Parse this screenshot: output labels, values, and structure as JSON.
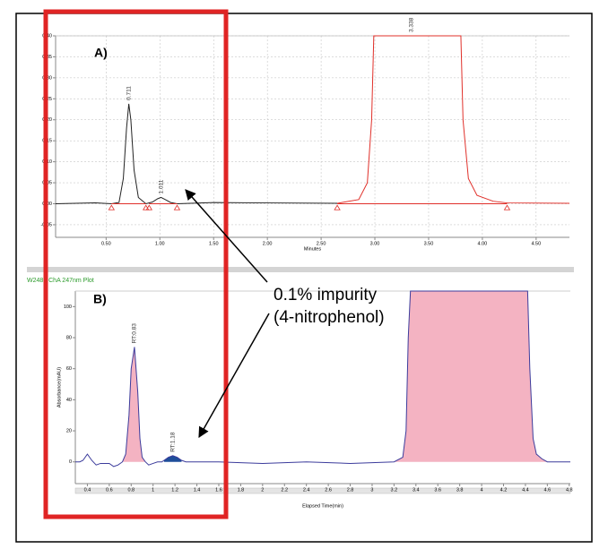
{
  "chart_data": [
    {
      "type": "line",
      "panel_label": "A)",
      "x_label": "Minutes",
      "xlim": [
        0.03,
        4.81
      ],
      "ylim": [
        -0.08,
        0.4
      ],
      "xticks": [
        {
          "value": 0.5,
          "label": "0.50"
        },
        {
          "value": 1,
          "label": "1.00"
        },
        {
          "value": 1.5,
          "label": "1.50"
        },
        {
          "value": 2,
          "label": "2.00"
        },
        {
          "value": 2.5,
          "label": "2.50"
        },
        {
          "value": 3,
          "label": "3.00"
        },
        {
          "value": 3.5,
          "label": "3.50"
        },
        {
          "value": 4,
          "label": "4.00"
        },
        {
          "value": 4.5,
          "label": "4.50"
        }
      ],
      "yticks": [
        {
          "value": -0.05,
          "label": "-0.05"
        },
        {
          "value": 0,
          "label": "0.00"
        },
        {
          "value": 0.05,
          "label": "0.05"
        },
        {
          "value": 0.1,
          "label": "0.10"
        },
        {
          "value": 0.15,
          "label": "0.15"
        },
        {
          "value": 0.2,
          "label": "0.20"
        },
        {
          "value": 0.25,
          "label": "0.25"
        },
        {
          "value": 0.3,
          "label": "0.30"
        },
        {
          "value": 0.35,
          "label": "0.35"
        },
        {
          "value": 0.4,
          "label": "0.40"
        }
      ],
      "series": [
        {
          "color": "#222222",
          "x": [
            0.03,
            0.4,
            0.55,
            0.62,
            0.66,
            0.69,
            0.711,
            0.73,
            0.76,
            0.8,
            0.87,
            0.93,
            0.98,
            1.011,
            1.05,
            1.1,
            1.16,
            1.5,
            2.0,
            2.65
          ],
          "values": [
            0,
            0.002,
            0,
            0.003,
            0.06,
            0.18,
            0.238,
            0.2,
            0.08,
            0.015,
            0,
            0.004,
            0.012,
            0.015,
            0.01,
            0.003,
            0,
            0.003,
            0.002,
            0.001
          ]
        },
        {
          "color": "#e0302a",
          "x": [
            2.65,
            2.85,
            2.93,
            2.97,
            2.99,
            3.8,
            3.82,
            3.87,
            3.95,
            4.1,
            4.23,
            4.81
          ],
          "values": [
            0.001,
            0.01,
            0.05,
            0.2,
            0.4,
            0.4,
            0.2,
            0.06,
            0.02,
            0.006,
            0.002,
            0.001
          ]
        },
        {
          "color": "#e0302a",
          "x": [
            0.55,
            0.87,
            0.88,
            0.9,
            1.16,
            1.2,
            2.65,
            4.23
          ],
          "values": [
            0,
            0,
            null,
            0,
            0,
            null,
            0,
            0
          ]
        }
      ],
      "integration_marks": {
        "color": "#e0302a",
        "x": [
          0.55,
          0.87,
          0.9,
          1.16,
          2.65,
          4.23
        ],
        "values": [
          -0.008,
          -0.008,
          -0.008,
          -0.008,
          -0.008,
          -0.008
        ]
      },
      "peak_labels": [
        {
          "text": "0.711",
          "x": 0.711,
          "y": 0.238
        },
        {
          "text": "1.011",
          "x": 1.011,
          "y": 0.015
        },
        {
          "text": "3.338",
          "x": 3.338,
          "y": 0.4
        }
      ]
    },
    {
      "type": "line",
      "panel_label": "B)",
      "title": "W2489 ChA 247nm Plot",
      "x_label": "Elapsed Time(min)",
      "y_label": "Absorbance(mAU)",
      "xlim": [
        0.29,
        4.81
      ],
      "ylim": [
        -14,
        110
      ],
      "xticks": [
        0.4,
        0.6,
        0.8,
        1,
        1.2,
        1.4,
        1.6,
        1.8,
        2,
        2.2,
        2.4,
        2.6,
        2.8,
        3,
        3.2,
        3.4,
        3.6,
        3.8,
        4,
        4.2,
        4.4,
        4.6,
        4.8
      ],
      "yticks": [
        0,
        20,
        40,
        60,
        80,
        100
      ],
      "series": [
        {
          "color": "#3c3c9c",
          "x": [
            0.29,
            0.33,
            0.36,
            0.4,
            0.44,
            0.48,
            0.52,
            0.56,
            0.6,
            0.64,
            0.68,
            0.72,
            0.75,
            0.78,
            0.8,
            0.83,
            0.86,
            0.88,
            0.9,
            0.93,
            0.96,
            1.0,
            1.04,
            1.08,
            1.1,
            1.14,
            1.18,
            1.22,
            1.26,
            1.3,
            1.6,
            2.0,
            2.4,
            2.8,
            3.2,
            3.28,
            3.31,
            3.33,
            3.35,
            4.42,
            4.44,
            4.47,
            4.5,
            4.55,
            4.6,
            4.81
          ],
          "values": [
            0,
            0,
            1,
            5,
            1,
            -2,
            -1,
            -1,
            -1,
            -3,
            -2,
            0,
            5,
            30,
            60,
            74,
            45,
            15,
            3,
            0,
            -2,
            -1,
            0,
            0,
            1,
            3,
            4,
            3,
            1,
            0,
            0,
            -1,
            0,
            -1,
            0,
            3,
            20,
            80,
            110,
            110,
            60,
            15,
            5,
            2,
            0,
            0
          ]
        }
      ],
      "fills": [
        {
          "from": 0.72,
          "to": 0.93,
          "color": "#f4b3c2"
        },
        {
          "from": 1.1,
          "to": 1.26,
          "color": "#1f4e9a"
        },
        {
          "from": 3.2,
          "to": 4.6,
          "color": "#f4b3c2"
        }
      ],
      "peak_labels": [
        {
          "text": "RT:0.83",
          "x": 0.83,
          "y": 74
        },
        {
          "text": "RT:1.18",
          "x": 1.18,
          "y": 4
        }
      ]
    }
  ],
  "annotation": [
    "0.1% impurity",
    "(4-nitrophenol)"
  ]
}
